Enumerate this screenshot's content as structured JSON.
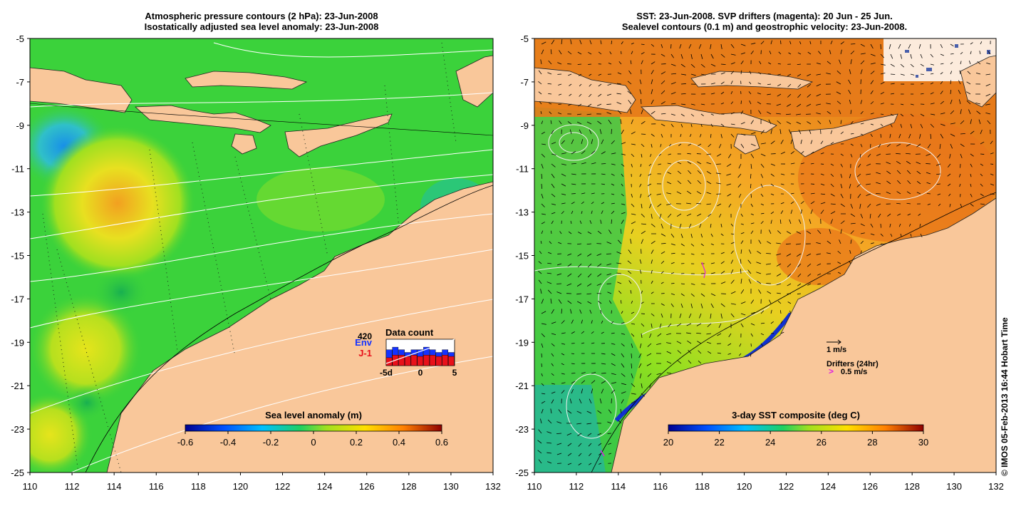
{
  "left_panel": {
    "title_line1": "Atmospheric pressure contours (2 hPa): 23-Jun-2008",
    "title_line2": "Isostatically adjusted sea level anomaly: 23-Jun-2008",
    "colorbar_label": "Sea level anomaly (m)",
    "colorbar_ticks": [
      "-0.6",
      "-0.4",
      "-0.2",
      "0",
      "0.2",
      "0.4",
      "0.6"
    ],
    "data_count": {
      "title": "Data count",
      "max_label": "420",
      "series1_label": "Env",
      "series2_label": "J-1",
      "x_ticks": [
        "-5d",
        "0",
        "5"
      ],
      "env_values": [
        0.6,
        0.7,
        0.6,
        0.5,
        0.6,
        0.6,
        0.7,
        0.6,
        0.5,
        0.6,
        0.5
      ],
      "j1_values": [
        0.3,
        0.4,
        0.4,
        0.35,
        0.4,
        0.35,
        0.4,
        0.4,
        0.35,
        0.4,
        0.35
      ],
      "colors": {
        "env": "#1432ff",
        "j1": "#e8101a"
      }
    }
  },
  "right_panel": {
    "title_line1": "SST: 23-Jun-2008. SVP drifters (magenta): 20 Jun - 25 Jun.",
    "title_line2": "Sealevel contours (0.1 m) and geostrophic velocity: 23-Jun-2008.",
    "colorbar_label": "3-day SST composite (deg C)",
    "colorbar_ticks": [
      "20",
      "22",
      "24",
      "26",
      "28",
      "30"
    ],
    "velocity_scale_label": "1 m/s",
    "drifters_label": "Drifters (24hr)",
    "drifters_speed_label": "0.5 m/s",
    "drifter_color": "#e020e0"
  },
  "axes": {
    "y_ticks": [
      "-5",
      "-7",
      "-9",
      "-11",
      "-13",
      "-15",
      "-17",
      "-19",
      "-21",
      "-23",
      "-25"
    ],
    "x_ticks": [
      "110",
      "112",
      "114",
      "116",
      "118",
      "120",
      "122",
      "124",
      "126",
      "128",
      "130",
      "132"
    ]
  },
  "credit": "© IMOS 05-Feb-2013 16:44 Hobart Time",
  "colors": {
    "land": "#f9c79a",
    "sea_mid": "#3bd23b",
    "sst_warm": "#f09a2a"
  }
}
